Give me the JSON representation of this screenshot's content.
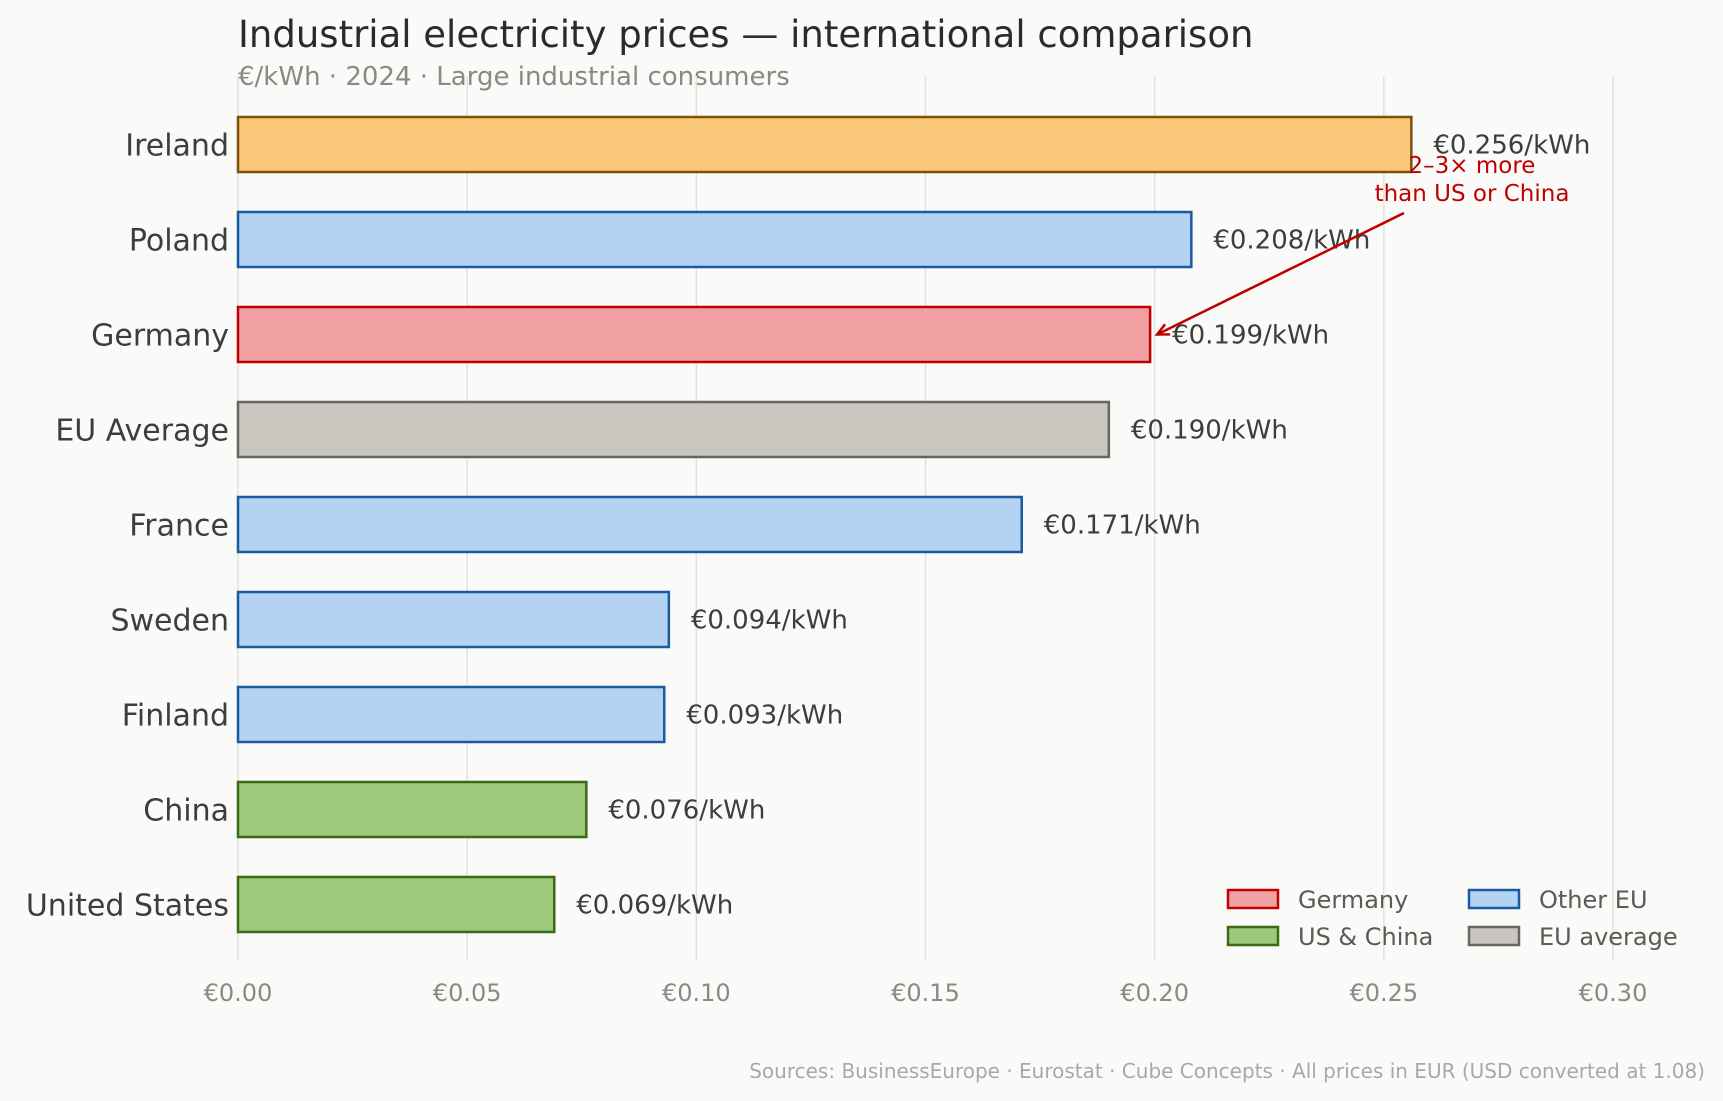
{
  "chart_data": {
    "type": "bar",
    "orientation": "horizontal",
    "title": "Industrial electricity prices — international comparison",
    "subtitle": "€/kWh · 2024 · Large industrial consumers",
    "xlabel": "",
    "ylabel": "",
    "xlim": [
      0,
      0.3
    ],
    "grid": true,
    "x_ticks": [
      0.0,
      0.05,
      0.1,
      0.15,
      0.2,
      0.25,
      0.3
    ],
    "x_tick_labels": [
      "€0.00",
      "€0.05",
      "€0.10",
      "€0.15",
      "€0.20",
      "€0.25",
      "€0.30"
    ],
    "categories": [
      "Ireland",
      "Poland",
      "Germany",
      "EU Average",
      "France",
      "Sweden",
      "Finland",
      "China",
      "United States"
    ],
    "values": [
      0.256,
      0.208,
      0.199,
      0.19,
      0.171,
      0.094,
      0.093,
      0.076,
      0.069
    ],
    "value_labels": [
      "€0.256/kWh",
      "€0.208/kWh",
      "€0.199/kWh",
      "€0.190/kWh",
      "€0.171/kWh",
      "€0.094/kWh",
      "€0.093/kWh",
      "€0.076/kWh",
      "€0.069/kWh"
    ],
    "groups": [
      "ireland",
      "other_eu",
      "germany",
      "eu_average",
      "other_eu",
      "other_eu",
      "other_eu",
      "us_china",
      "us_china"
    ],
    "group_styles": {
      "ireland": {
        "fill": "#f9c879",
        "stroke": "#7f4f10"
      },
      "germany": {
        "fill": "#f0a0a2",
        "stroke": "#c00000"
      },
      "other_eu": {
        "fill": "#b4d3f3",
        "stroke": "#1a5aa0"
      },
      "us_china": {
        "fill": "#9ec97c",
        "stroke": "#386b12"
      },
      "eu_average": {
        "fill": "#c9c6c0",
        "stroke": "#666660"
      }
    },
    "highlight_label_color": {
      "Germany": "#c00000"
    },
    "legend": {
      "placement": "bottom-right",
      "entries": [
        {
          "label": "Germany",
          "group": "germany"
        },
        {
          "label": "Other EU",
          "group": "other_eu"
        },
        {
          "label": "US & China",
          "group": "us_china"
        },
        {
          "label": "EU average",
          "group": "eu_average"
        }
      ]
    },
    "annotation": {
      "lines": [
        "2–3× more",
        "than US or China"
      ],
      "points_to": "Germany",
      "color": "#c00000"
    },
    "source": "Sources: BusinessEurope · Eurostat · Cube Concepts · All prices in EUR (USD converted at 1.08)"
  }
}
